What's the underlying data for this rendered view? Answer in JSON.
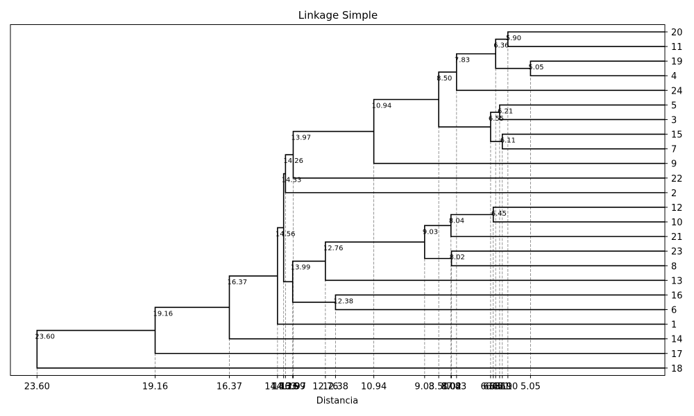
{
  "chart_data": {
    "type": "dendrogram",
    "title": "Linkage Simple",
    "xlabel": "Distancia",
    "ylabel": "",
    "xlim": [
      24.6,
      0.0
    ],
    "x_axis_inverted": true,
    "grid": false,
    "leaves_top_to_bottom": [
      "20",
      "11",
      "19",
      "4",
      "24",
      "5",
      "3",
      "15",
      "7",
      "9",
      "22",
      "2",
      "12",
      "10",
      "21",
      "23",
      "8",
      "13",
      "16",
      "6",
      "1",
      "14",
      "17",
      "18"
    ],
    "merges": [
      {
        "a": "20",
        "b": "11",
        "height": 5.9,
        "label": "5.90"
      },
      {
        "a": "19",
        "b": "4",
        "height": 5.05,
        "label": "5.05"
      },
      {
        "a": "m0",
        "b": "m1",
        "height": 6.36,
        "label": "6.36"
      },
      {
        "a": "m2",
        "b": "24",
        "height": 7.83,
        "label": "7.83"
      },
      {
        "a": "5",
        "b": "3",
        "height": 6.21,
        "label": "6.21"
      },
      {
        "a": "15",
        "b": "7",
        "height": 6.11,
        "label": "6.11"
      },
      {
        "a": "m4",
        "b": "m5",
        "height": 6.55,
        "label": "6.55"
      },
      {
        "a": "m3",
        "b": "m6",
        "height": 8.5,
        "label": "8.50"
      },
      {
        "a": "m7",
        "b": "9",
        "height": 10.94,
        "label": "10.94"
      },
      {
        "a": "m8",
        "b": "22",
        "height": 13.97,
        "label": "13.97"
      },
      {
        "a": "m9",
        "b": "2",
        "height": 14.26,
        "label": "14.26"
      },
      {
        "a": "12",
        "b": "10",
        "height": 6.45,
        "label": "6.45"
      },
      {
        "a": "m11",
        "b": "21",
        "height": 8.04,
        "label": "8.04"
      },
      {
        "a": "23",
        "b": "8",
        "height": 8.02,
        "label": "8.02"
      },
      {
        "a": "m12",
        "b": "m13",
        "height": 9.03,
        "label": "9.03"
      },
      {
        "a": "m14",
        "b": "13",
        "height": 12.76,
        "label": "12.76"
      },
      {
        "a": "16",
        "b": "6",
        "height": 12.38,
        "label": "12.38"
      },
      {
        "a": "m15",
        "b": "m16",
        "height": 13.99,
        "label": "13.99"
      },
      {
        "a": "m10",
        "b": "m17",
        "height": 14.33,
        "label": "14.33"
      },
      {
        "a": "m18",
        "b": "1",
        "height": 14.56,
        "label": "14.56"
      },
      {
        "a": "m19",
        "b": "14",
        "height": 16.37,
        "label": "16.37"
      },
      {
        "a": "m20",
        "b": "17",
        "height": 19.16,
        "label": "19.16"
      },
      {
        "a": "m21",
        "b": "18",
        "height": 23.6,
        "label": "23.60"
      }
    ],
    "x_tick_labels": [
      "23.60",
      "19.16",
      "16.37",
      "14.56",
      "14.33",
      "14.26",
      "13.99",
      "13.97",
      "12.76",
      "12.38",
      "10.94",
      "9.03",
      "8.50",
      "8.04",
      "8.02",
      "7.83",
      "6.55",
      "6.45",
      "6.36",
      "6.21",
      "6.11",
      "5.90",
      "5.05"
    ]
  }
}
